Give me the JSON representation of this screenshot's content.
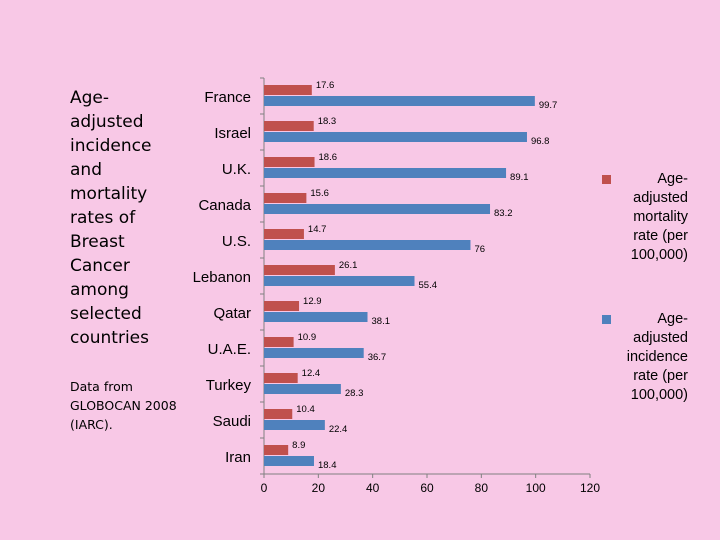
{
  "side": {
    "title": "Age-adjusted incidence and mortality rates of Breast Cancer among selected countries",
    "source": "Data from GLOBOCAN 2008 (IARC)."
  },
  "colors": {
    "mortality": "#c0504d",
    "incidence": "#4f81bd",
    "axis": "#808080"
  },
  "chart_data": {
    "type": "bar",
    "orientation": "horizontal",
    "categories": [
      "France",
      "Israel",
      "U.K.",
      "Canada",
      "U.S.",
      "Lebanon",
      "Qatar",
      "U.A.E.",
      "Turkey",
      "Saudi",
      "Iran"
    ],
    "series": [
      {
        "name": "Age-adjusted mortality rate (per 100,000)",
        "values": [
          17.6,
          18.3,
          18.6,
          15.6,
          14.7,
          26.1,
          12.9,
          10.9,
          12.4,
          10.4,
          8.9
        ],
        "labels": [
          "17.6",
          "18.3",
          "18.6",
          "15.6",
          "14.7",
          "26.1",
          "12.9",
          "10.9",
          "12.4",
          "10.4",
          "8.9"
        ]
      },
      {
        "name": "Age-adjusted incidence rate (per 100,000)",
        "values": [
          99.7,
          96.8,
          89.1,
          83.2,
          76,
          55.4,
          38.1,
          36.7,
          28.3,
          22.4,
          18.4
        ],
        "labels": [
          "99.7",
          "96.8",
          "89.1",
          "83.2",
          "76",
          "55.4",
          "38.1",
          "36.7",
          "28.3",
          "22.4",
          "18.4"
        ]
      }
    ],
    "xlim": [
      0,
      120
    ],
    "xticks": [
      "0",
      "20",
      "40",
      "60",
      "80",
      "100",
      "120"
    ],
    "grid": false,
    "legend_position": "right"
  }
}
